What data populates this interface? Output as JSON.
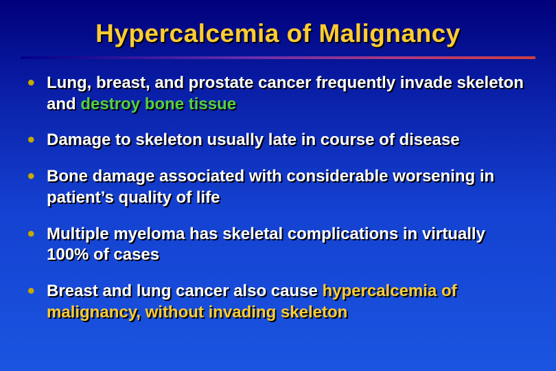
{
  "slide": {
    "title": "Hypercalcemia of Malignancy",
    "background_gradient": [
      "#00007a",
      "#0a1fa8",
      "#1440d0",
      "#1a55e0"
    ],
    "title_color": "#FFCC33",
    "bullet_color": "#C3A900",
    "highlight_green": "#55D040",
    "highlight_yellow": "#FFCC33",
    "divider_gradient": [
      "#00008b",
      "#6a2fae",
      "#b03a7e",
      "#d04040"
    ],
    "body_fontsize": 24,
    "title_fontsize": 37,
    "bullets": [
      {
        "pre": "Lung, breast, and prostate cancer frequently invade skeleton and ",
        "hl": "destroy bone tissue",
        "hl_class": "hl-green",
        "post": ""
      },
      {
        "pre": "Damage to skeleton usually late in course of disease",
        "hl": "",
        "hl_class": "",
        "post": ""
      },
      {
        "pre": "Bone damage associated with considerable worsening in patient’s quality of life",
        "hl": "",
        "hl_class": "",
        "post": ""
      },
      {
        "pre": "Multiple myeloma has skeletal complications in virtually 100% of cases",
        "hl": "",
        "hl_class": "",
        "post": ""
      },
      {
        "pre": "Breast and lung cancer also cause ",
        "hl": "hypercalcemia of malignancy, without invading skeleton",
        "hl_class": "hl-yellow",
        "post": ""
      }
    ]
  }
}
